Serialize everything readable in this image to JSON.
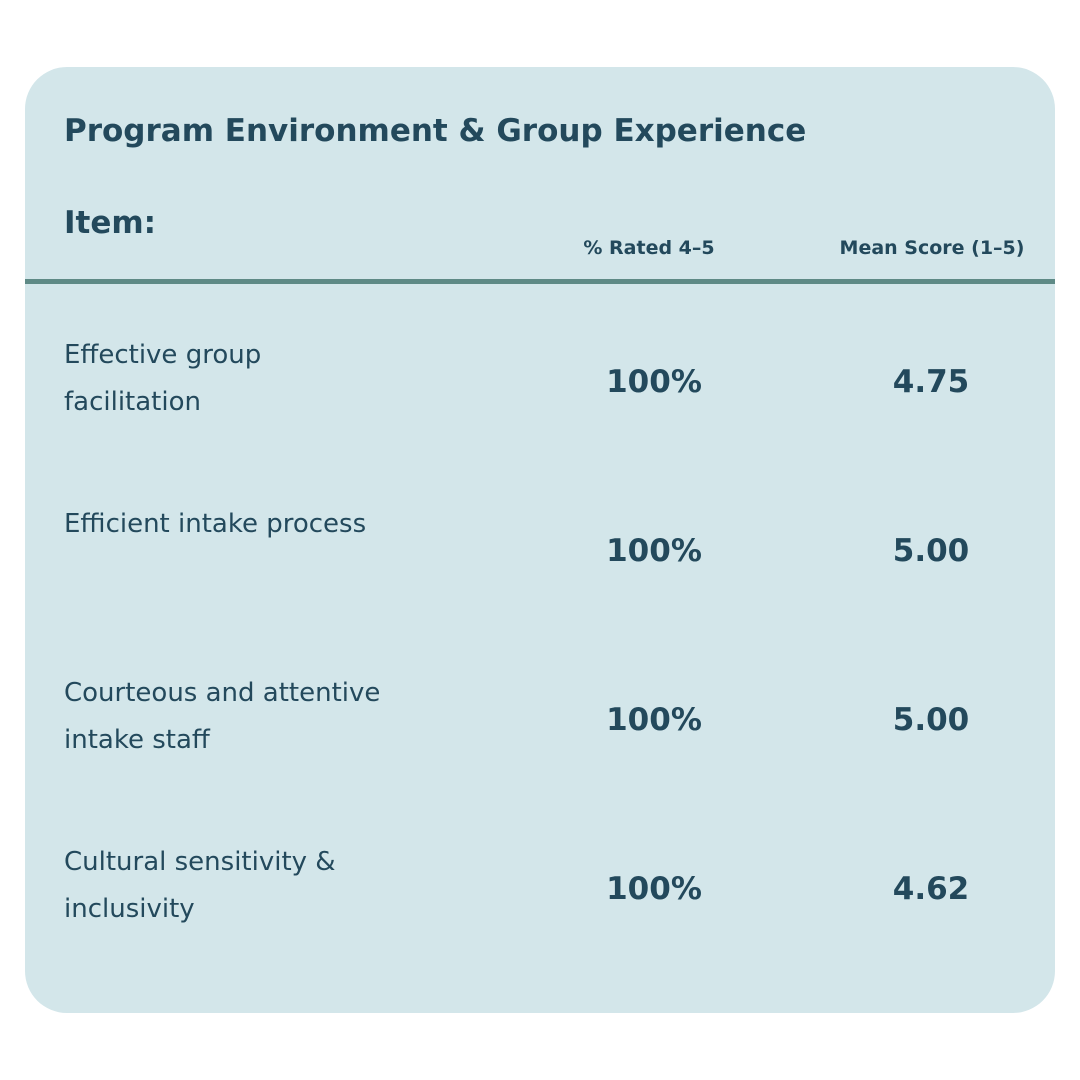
{
  "table": {
    "title": "Program Environment & Group Experience",
    "item_header": "Item:",
    "columns": [
      "% Rated 4–5",
      "Mean Score (1–5)"
    ],
    "rows": [
      {
        "item": "Effective group facilitation",
        "pct_rated_4_5": "100%",
        "mean_score": "4.75"
      },
      {
        "item": "Efficient intake process",
        "pct_rated_4_5": "100%",
        "mean_score": "5.00"
      },
      {
        "item": "Courteous and attentive intake staff",
        "pct_rated_4_5": "100%",
        "mean_score": "5.00"
      },
      {
        "item": "Cultural sensitivity & inclusivity",
        "pct_rated_4_5": "100%",
        "mean_score": "4.62"
      }
    ]
  },
  "colors": {
    "card_background": "#d3e6ea",
    "text": "#23495c",
    "divider": "#5e8a86"
  }
}
